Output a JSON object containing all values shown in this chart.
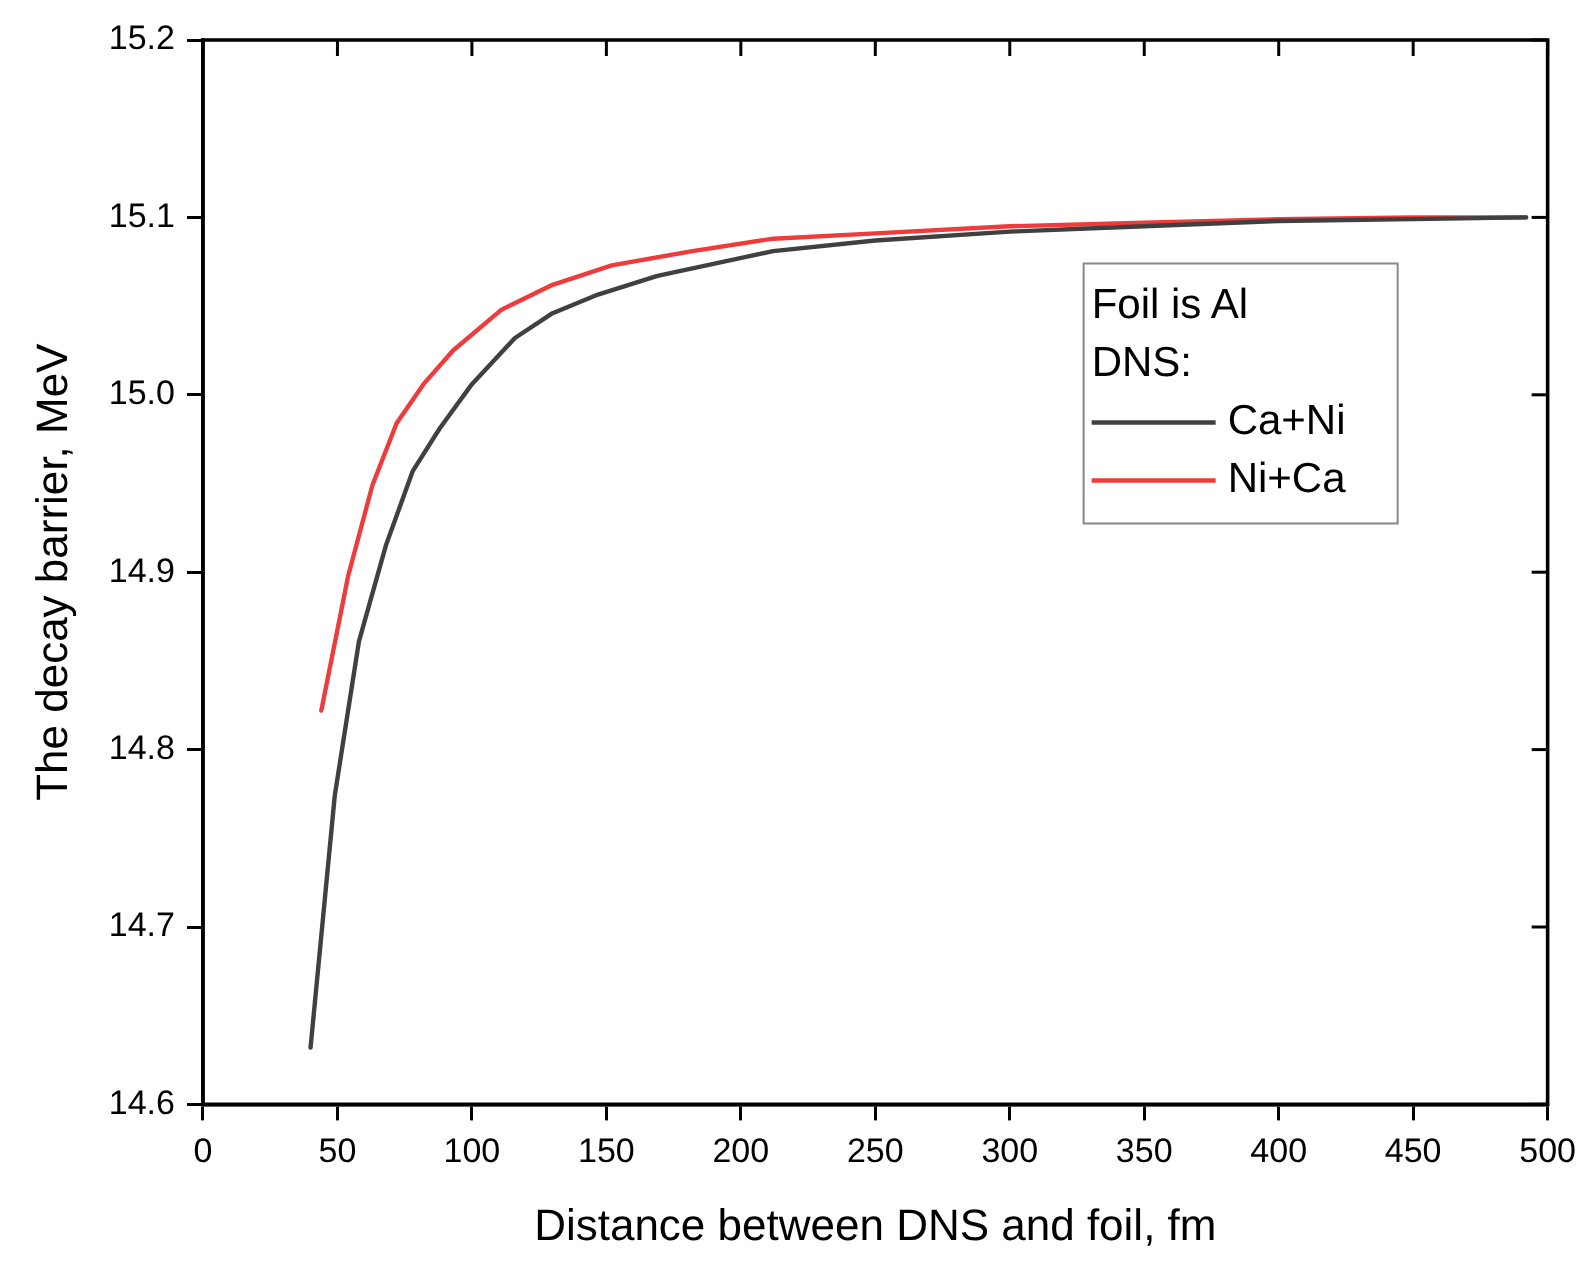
{
  "chart_data": {
    "type": "line",
    "xlabel": "Distance between DNS and foil, fm",
    "ylabel": "The decay barrier, MeV",
    "legend_title": "Foil is Al\nDNS:",
    "legend": "right",
    "grid": false,
    "marker": "none",
    "line_style": "solid",
    "xlim": [
      0,
      500
    ],
    "xticks": [
      0,
      50,
      100,
      150,
      200,
      250,
      300,
      350,
      400,
      450,
      500
    ],
    "ylim": [
      14.6,
      15.2
    ],
    "yticks": [
      14.6,
      14.7,
      14.8,
      14.9,
      {
        "value": 15,
        "label": "15.0"
      },
      15.1,
      15.2
    ],
    "series": [
      {
        "name": "Ca+Ni",
        "color": "#404040",
        "x": [
          40,
          49,
          58,
          68,
          78,
          88,
          100,
          116,
          130,
          146,
          169,
          212,
          250,
          300,
          350,
          400,
          450,
          492
        ],
        "values": [
          14.632,
          14.774,
          14.861,
          14.915,
          14.957,
          14.981,
          15.006,
          15.032,
          15.046,
          15.056,
          15.067,
          15.081,
          15.087,
          15.092,
          15.095,
          15.098,
          15.099,
          15.1
        ]
      },
      {
        "name": "Ni+Ca",
        "color": "#ee3b3b",
        "x": [
          44,
          54,
          63,
          72,
          82,
          93,
          111,
          130,
          152,
          182,
          212,
          250,
          300,
          350,
          400,
          450,
          492
        ],
        "values": [
          14.822,
          14.898,
          14.949,
          14.984,
          15.006,
          15.025,
          15.048,
          15.062,
          15.073,
          15.081,
          15.088,
          15.091,
          15.095,
          15.097,
          15.099,
          15.1,
          15.1
        ]
      }
    ]
  }
}
